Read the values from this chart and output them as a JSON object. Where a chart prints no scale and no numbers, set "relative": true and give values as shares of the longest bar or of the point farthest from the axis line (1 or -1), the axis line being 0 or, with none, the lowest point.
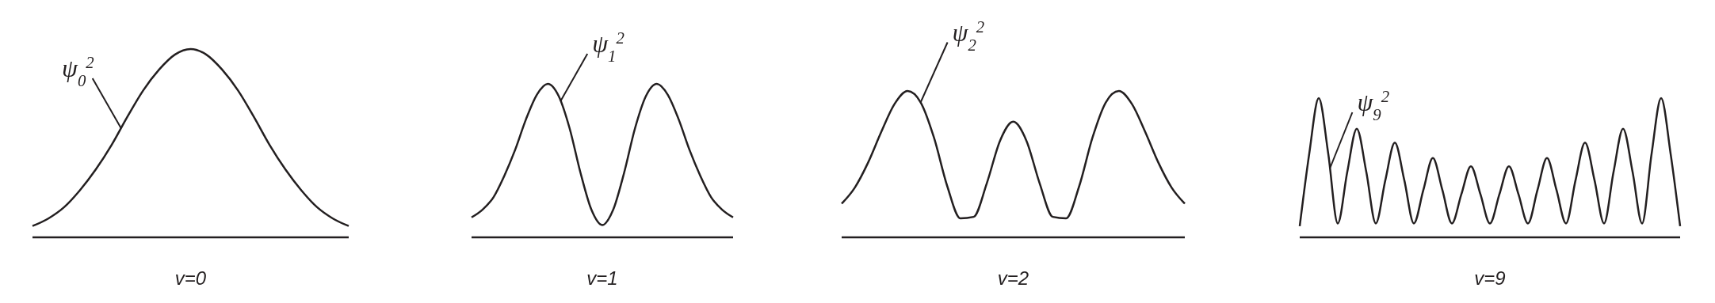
{
  "chart_data": [
    {
      "type": "line",
      "relative": true,
      "categories": [
        null,
        null,
        null,
        null,
        null,
        null,
        null,
        null,
        null,
        null,
        null,
        null,
        null,
        null,
        null,
        null,
        null,
        null,
        null,
        null,
        null
      ],
      "values": [
        0.06,
        0.1,
        0.16,
        0.25,
        0.36,
        0.49,
        0.64,
        0.78,
        0.89,
        0.97,
        1,
        0.97,
        0.89,
        0.78,
        0.64,
        0.49,
        0.36,
        0.25,
        0.16,
        0.1,
        0.06
      ],
      "color": "#231f20",
      "xlabel": "v=0",
      "annotations": [
        "ψ$_{0}$$^{2}$"
      ]
    },
    {
      "type": "line",
      "relative": true,
      "categories": [
        null,
        null,
        null,
        null,
        null,
        null,
        null,
        null,
        null,
        null,
        null,
        null,
        null,
        null,
        null,
        null,
        null,
        null,
        null,
        null,
        null,
        null,
        null,
        null,
        null
      ],
      "values": [
        0.13,
        0.18,
        0.26,
        0.4,
        0.57,
        0.77,
        0.93,
        1,
        0.92,
        0.71,
        0.42,
        0.18,
        0.08,
        0.18,
        0.42,
        0.71,
        0.92,
        1,
        0.93,
        0.77,
        0.57,
        0.4,
        0.26,
        0.18,
        0.13
      ],
      "color": "#231f20",
      "xlabel": "v=1",
      "annotations": [
        "ψ$_{1}$$^{2}$"
      ]
    },
    {
      "type": "line",
      "relative": true,
      "categories": [
        null,
        null,
        null,
        null,
        null,
        null,
        null,
        null,
        null,
        null,
        null,
        null,
        null,
        null,
        null,
        null,
        null,
        null,
        null,
        null,
        null,
        null,
        null,
        null,
        null,
        null,
        null
      ],
      "values": [
        0.23,
        0.34,
        0.51,
        0.72,
        0.91,
        1,
        0.92,
        0.68,
        0.35,
        0.13,
        0.14,
        0.37,
        0.66,
        0.79,
        0.66,
        0.37,
        0.14,
        0.13,
        0.35,
        0.68,
        0.92,
        1,
        0.91,
        0.72,
        0.51,
        0.34,
        0.23
      ],
      "color": "#231f20",
      "xlabel": "v=2",
      "annotations": [
        "ψ$_{2}$$^{2}$"
      ]
    },
    {
      "type": "line",
      "relative": true,
      "categories": [
        null,
        null,
        null,
        null,
        null,
        null,
        null,
        null,
        null,
        null,
        null,
        null,
        null,
        null,
        null,
        null,
        null,
        null,
        null,
        null,
        null,
        null,
        null,
        null,
        null,
        null,
        null,
        null,
        null,
        null,
        null,
        null,
        null,
        null,
        null,
        null,
        null,
        null,
        null,
        null,
        null
      ],
      "values": [
        0.08,
        0.6,
        1,
        0.6,
        0.1,
        0.47,
        0.78,
        0.47,
        0.1,
        0.41,
        0.68,
        0.41,
        0.1,
        0.34,
        0.57,
        0.34,
        0.1,
        0.31,
        0.51,
        0.31,
        0.1,
        0.31,
        0.51,
        0.31,
        0.1,
        0.34,
        0.57,
        0.34,
        0.1,
        0.41,
        0.68,
        0.41,
        0.1,
        0.47,
        0.78,
        0.47,
        0.1,
        0.6,
        1,
        0.6,
        0.08
      ],
      "color": "#231f20",
      "xlabel": "v=9",
      "annotations": [
        "ψ$_{9}$$^{2}$"
      ]
    }
  ]
}
